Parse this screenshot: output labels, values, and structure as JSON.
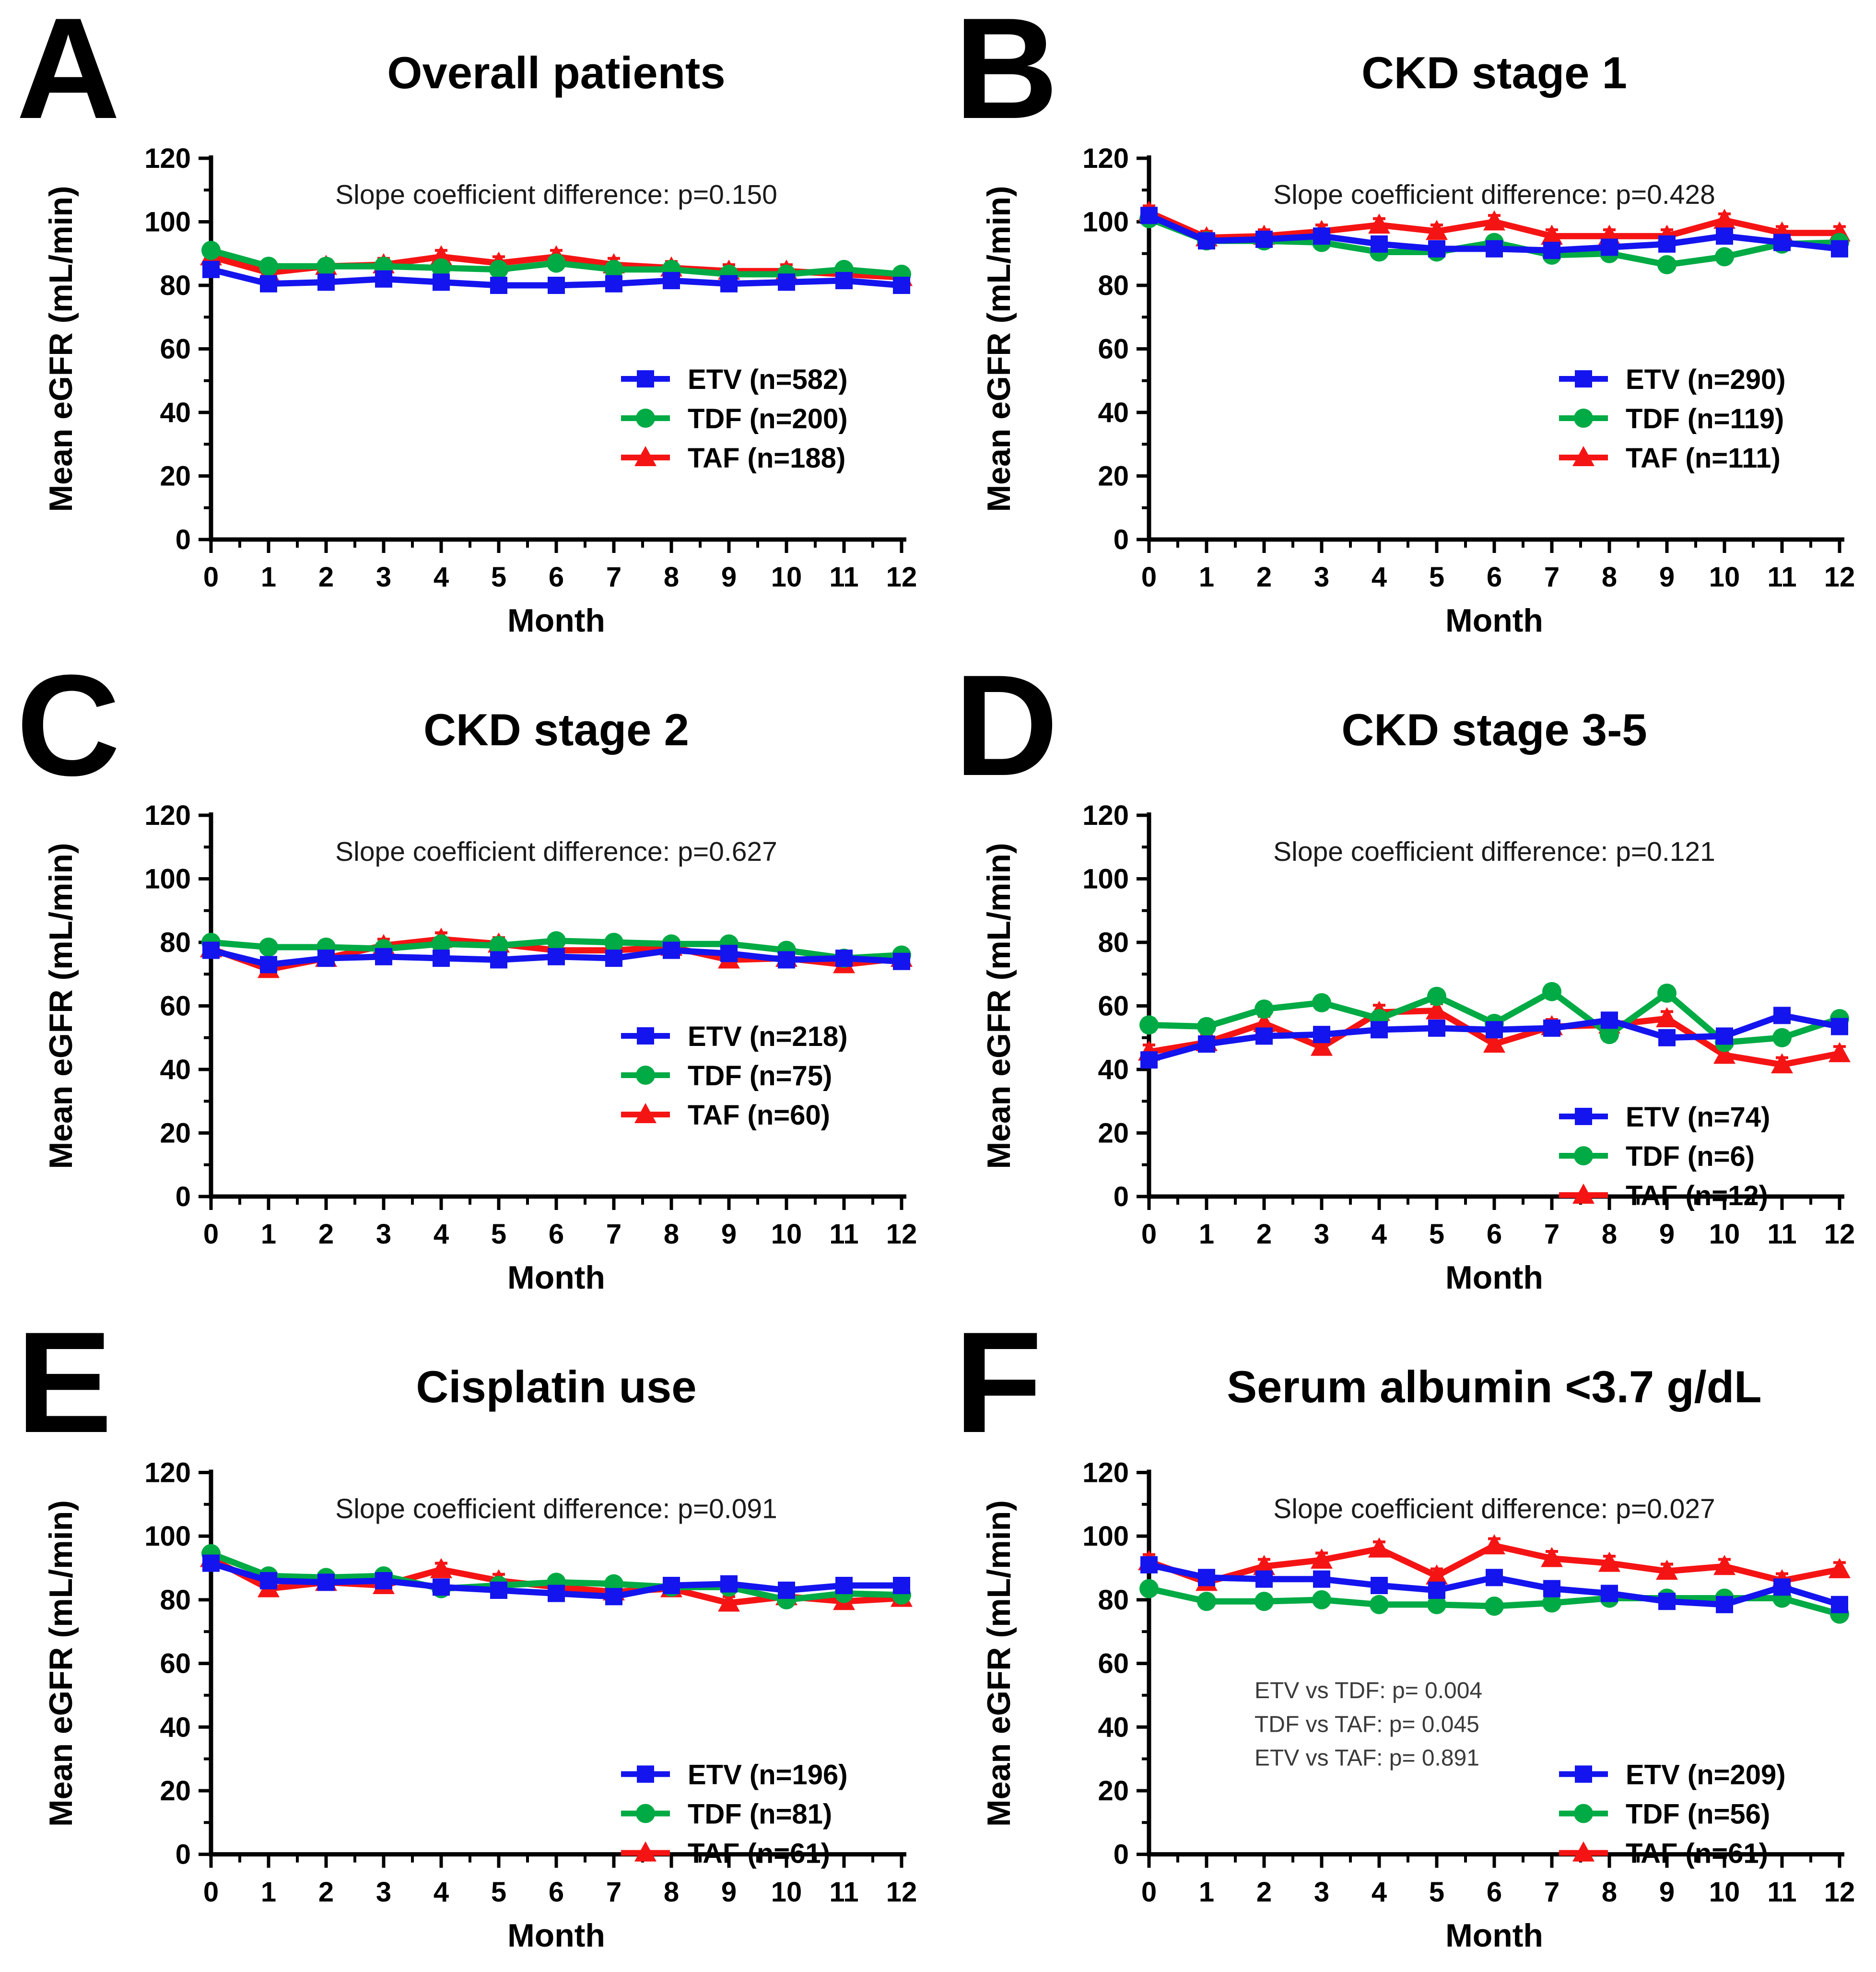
{
  "figure": {
    "xlabel": "Month",
    "ylabel": "Mean eGFR (mL/min)",
    "text_color": "#000000",
    "annotation_color": "#1a1a1a",
    "pvalue_note_color": "#3a3a3a",
    "background": "#ffffff",
    "series_colors": {
      "ETV": "#1414ee",
      "TDF": "#00aa44",
      "TAF": "#f51414"
    },
    "axis": {
      "xmin": 0,
      "xmax": 12,
      "xtick": 1,
      "xminor": 0.5,
      "ymin": 0,
      "ymax": 120,
      "ytick": 20,
      "yminor": 10
    }
  },
  "chart_data": [
    {
      "letter": "A",
      "title": "Overall patients",
      "annotation": "Slope coefficient difference: p=0.150",
      "type": "line",
      "x": [
        0,
        1,
        2,
        3,
        4,
        5,
        6,
        7,
        8,
        9,
        10,
        11,
        12
      ],
      "xlabel": "Month",
      "ylabel": "Mean eGFR (mL/min)",
      "ylim": [
        0,
        120
      ],
      "legend_pos": "lower-right",
      "legend_level": "high",
      "series": [
        {
          "name": "ETV (n=582)",
          "key": "ETV",
          "marker": "square",
          "color": "#1414ee",
          "sem": 1.2,
          "values": [
            85,
            80.5,
            81,
            82,
            81,
            80,
            80,
            80.5,
            81.5,
            80.5,
            81,
            81.5,
            80
          ]
        },
        {
          "name": "TDF (n=200)",
          "key": "TDF",
          "marker": "circle",
          "color": "#00aa44",
          "sem": 1.5,
          "values": [
            91,
            86,
            86,
            86,
            85.5,
            85,
            87,
            85,
            85,
            83.5,
            83.5,
            85,
            83.5
          ]
        },
        {
          "name": "TAF (n=188)",
          "key": "TAF",
          "marker": "triangle",
          "color": "#f51414",
          "sem": 2.0,
          "values": [
            89,
            84,
            86,
            86.5,
            89,
            87,
            89,
            86.5,
            85.5,
            84.5,
            84.5,
            83.5,
            82.5
          ]
        }
      ]
    },
    {
      "letter": "B",
      "title": "CKD stage 1",
      "annotation": "Slope coefficient difference: p=0.428",
      "type": "line",
      "x": [
        0,
        1,
        2,
        3,
        4,
        5,
        6,
        7,
        8,
        9,
        10,
        11,
        12
      ],
      "xlabel": "Month",
      "ylabel": "Mean eGFR (mL/min)",
      "ylim": [
        0,
        120
      ],
      "legend_pos": "lower-right",
      "legend_level": "high",
      "series": [
        {
          "name": "ETV (n=290)",
          "key": "ETV",
          "marker": "square",
          "color": "#1414ee",
          "sem": 1.2,
          "values": [
            102,
            94,
            94.5,
            95.5,
            93,
            91.5,
            91.5,
            91,
            92,
            93,
            95.5,
            93.5,
            91.5
          ]
        },
        {
          "name": "TDF (n=119)",
          "key": "TDF",
          "marker": "circle",
          "color": "#00aa44",
          "sem": 1.5,
          "values": [
            101,
            94,
            94,
            93.5,
            90.5,
            90.5,
            93.5,
            89.5,
            90,
            86.5,
            89,
            93,
            93.5
          ]
        },
        {
          "name": "TAF (n=111)",
          "key": "TAF",
          "marker": "triangle",
          "color": "#f51414",
          "sem": 2.0,
          "values": [
            103,
            95,
            95.5,
            97,
            99,
            97,
            100,
            95.5,
            95.5,
            95.5,
            100.5,
            96.5,
            96.5
          ]
        }
      ]
    },
    {
      "letter": "C",
      "title": "CKD stage 2",
      "annotation": "Slope coefficient difference: p=0.627",
      "type": "line",
      "x": [
        0,
        1,
        2,
        3,
        4,
        5,
        6,
        7,
        8,
        9,
        10,
        11,
        12
      ],
      "xlabel": "Month",
      "ylabel": "Mean eGFR (mL/min)",
      "ylim": [
        0,
        120
      ],
      "legend_pos": "lower-right",
      "legend_level": "high",
      "series": [
        {
          "name": "ETV (n=218)",
          "key": "ETV",
          "marker": "square",
          "color": "#1414ee",
          "sem": 1.2,
          "values": [
            77.5,
            73,
            75,
            75.5,
            75,
            74.5,
            75.5,
            75,
            77.5,
            76.5,
            74.5,
            75,
            74
          ]
        },
        {
          "name": "TDF (n=75)",
          "key": "TDF",
          "marker": "circle",
          "color": "#00aa44",
          "sem": 1.5,
          "values": [
            80,
            78.5,
            78.5,
            78,
            79.5,
            79,
            80.5,
            80,
            79.5,
            79.5,
            77.5,
            75,
            76
          ]
        },
        {
          "name": "TAF (n=60)",
          "key": "TAF",
          "marker": "triangle",
          "color": "#f51414",
          "sem": 2.0,
          "values": [
            78,
            71.5,
            75,
            79,
            81,
            79.5,
            77.5,
            77.5,
            78.5,
            74.5,
            75,
            73,
            75
          ]
        }
      ]
    },
    {
      "letter": "D",
      "title": "CKD stage 3-5",
      "annotation": "Slope coefficient difference: p=0.121",
      "type": "line",
      "x": [
        0,
        1,
        2,
        3,
        4,
        5,
        6,
        7,
        8,
        9,
        10,
        11,
        12
      ],
      "xlabel": "Month",
      "ylabel": "Mean eGFR (mL/min)",
      "ylim": [
        0,
        120
      ],
      "legend_pos": "lower-right",
      "legend_level": "low",
      "series": [
        {
          "name": "ETV (n=74)",
          "key": "ETV",
          "marker": "square",
          "color": "#1414ee",
          "sem": 1.5,
          "values": [
            43,
            48,
            50.5,
            51,
            52.5,
            53,
            52.5,
            53,
            55.5,
            50,
            50.5,
            57,
            53.5
          ]
        },
        {
          "name": "TDF (n=6)",
          "key": "TDF",
          "marker": "circle",
          "color": "#00aa44",
          "sem": 2.0,
          "values": [
            54,
            53.5,
            59,
            61,
            56,
            63,
            54.5,
            64.5,
            51,
            64,
            48.5,
            50,
            56
          ]
        },
        {
          "name": "TAF (n=12)",
          "key": "TAF",
          "marker": "triangle",
          "color": "#f51414",
          "sem": 2.2,
          "values": [
            45.5,
            48.5,
            54.5,
            47,
            58,
            58.5,
            48,
            53.5,
            54,
            56,
            44.5,
            41.5,
            45
          ]
        }
      ]
    },
    {
      "letter": "E",
      "title": "Cisplatin use",
      "annotation": "Slope coefficient difference: p=0.091",
      "type": "line",
      "x": [
        0,
        1,
        2,
        3,
        4,
        5,
        6,
        7,
        8,
        9,
        10,
        11,
        12
      ],
      "xlabel": "Month",
      "ylabel": "Mean eGFR (mL/min)",
      "ylim": [
        0,
        120
      ],
      "legend_pos": "lower-right",
      "legend_level": "low",
      "series": [
        {
          "name": "ETV (n=196)",
          "key": "ETV",
          "marker": "square",
          "color": "#1414ee",
          "sem": 1.2,
          "values": [
            91.5,
            86,
            85.5,
            86,
            84,
            83,
            82,
            81,
            84.5,
            85,
            83,
            84.5,
            84.5
          ]
        },
        {
          "name": "TDF (n=81)",
          "key": "TDF",
          "marker": "circle",
          "color": "#00aa44",
          "sem": 1.5,
          "values": [
            94.5,
            87.5,
            87,
            87.5,
            83.5,
            84.5,
            85.5,
            85,
            84,
            84,
            80,
            82,
            81.5
          ]
        },
        {
          "name": "TAF (n=61)",
          "key": "TAF",
          "marker": "triangle",
          "color": "#f51414",
          "sem": 2.0,
          "values": [
            93,
            83.5,
            85.5,
            84.5,
            89.5,
            86,
            84,
            82.5,
            83.5,
            79,
            81,
            79.5,
            80.5
          ]
        }
      ]
    },
    {
      "letter": "F",
      "title": "Serum albumin <3.7 g/dL",
      "annotation": "Slope coefficient difference: p=0.027",
      "type": "line",
      "x": [
        0,
        1,
        2,
        3,
        4,
        5,
        6,
        7,
        8,
        9,
        10,
        11,
        12
      ],
      "xlabel": "Month",
      "ylabel": "Mean eGFR (mL/min)",
      "ylim": [
        0,
        120
      ],
      "legend_pos": "lower-right",
      "legend_level": "low",
      "extra_annotations": [
        "ETV vs TDF: p= 0.004",
        "TDF vs TAF: p= 0.045",
        "ETV vs TAF: p= 0.891"
      ],
      "series": [
        {
          "name": "ETV (n=209)",
          "key": "ETV",
          "marker": "square",
          "color": "#1414ee",
          "sem": 1.2,
          "values": [
            91,
            87,
            86.5,
            86.5,
            84.5,
            83,
            87,
            83.5,
            82,
            79.5,
            78.5,
            84,
            78.5
          ]
        },
        {
          "name": "TDF (n=56)",
          "key": "TDF",
          "marker": "circle",
          "color": "#00aa44",
          "sem": 1.5,
          "values": [
            83.5,
            79.5,
            79.5,
            80,
            78.5,
            78.5,
            78,
            79,
            80.5,
            80.5,
            80.5,
            80.5,
            75.5
          ]
        },
        {
          "name": "TAF (n=61)",
          "key": "TAF",
          "marker": "triangle",
          "color": "#f51414",
          "sem": 2.2,
          "values": [
            92,
            85.5,
            90.5,
            92.5,
            96,
            87.5,
            97,
            93,
            91.5,
            89,
            90.5,
            86,
            89.5
          ]
        }
      ]
    }
  ]
}
